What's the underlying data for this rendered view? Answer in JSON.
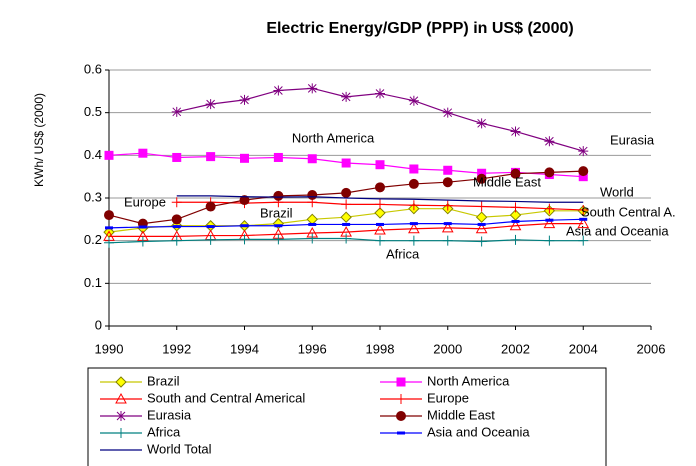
{
  "chart_data": {
    "type": "line",
    "title": "Electric Energy/GDP (PPP) in US$ (2000)",
    "y_label": "KWh/ US$ (2000)",
    "x": [
      1990,
      1991,
      1992,
      1993,
      1994,
      1995,
      1996,
      1997,
      1998,
      1999,
      2000,
      2001,
      2002,
      2003,
      2004
    ],
    "xlim": [
      1990,
      2006
    ],
    "xticks": [
      1990,
      1992,
      1994,
      1996,
      1998,
      2000,
      2002,
      2004,
      2006
    ],
    "ylim": [
      0,
      0.6
    ],
    "yticks": [
      0,
      0.1,
      0.2,
      0.3,
      0.4,
      0.5,
      0.6
    ],
    "grid": true,
    "series": [
      {
        "name": "Brazil",
        "color": "#c8c800",
        "marker": "diamond",
        "values": [
          0.22,
          0.23,
          0.235,
          0.235,
          0.235,
          0.24,
          0.25,
          0.255,
          0.265,
          0.275,
          0.275,
          0.255,
          0.26,
          0.27,
          0.27
        ]
      },
      {
        "name": "North America",
        "color": "#ff00ff",
        "marker": "square",
        "values": [
          0.4,
          0.405,
          0.395,
          0.397,
          0.393,
          0.395,
          0.392,
          0.382,
          0.378,
          0.368,
          0.365,
          0.358,
          0.36,
          0.355,
          0.35
        ]
      },
      {
        "name": "South and Central Americal",
        "color": "#ff0000",
        "marker": "triangle",
        "values": [
          0.21,
          0.21,
          0.21,
          0.212,
          0.212,
          0.215,
          0.218,
          0.22,
          0.225,
          0.228,
          0.23,
          0.228,
          0.235,
          0.24,
          0.24
        ]
      },
      {
        "name": "Europe",
        "color": "#ff0000",
        "marker": "plus",
        "values": [
          null,
          null,
          0.29,
          0.29,
          0.288,
          0.29,
          0.29,
          0.285,
          0.285,
          0.283,
          0.282,
          0.28,
          0.278,
          0.275,
          0.272
        ]
      },
      {
        "name": "Eurasia",
        "color": "#800080",
        "marker": "asterisk",
        "values": [
          null,
          null,
          0.502,
          0.52,
          0.53,
          0.552,
          0.557,
          0.537,
          0.545,
          0.528,
          0.5,
          0.475,
          0.456,
          0.433,
          0.41
        ]
      },
      {
        "name": "Middle East",
        "color": "#800000",
        "marker": "circle",
        "values": [
          0.26,
          0.24,
          0.25,
          0.28,
          0.295,
          0.305,
          0.307,
          0.312,
          0.325,
          0.333,
          0.337,
          0.345,
          0.357,
          0.36,
          0.363
        ]
      },
      {
        "name": "Africa",
        "color": "#008080",
        "marker": "plus",
        "values": [
          0.195,
          0.198,
          0.2,
          0.202,
          0.203,
          0.203,
          0.205,
          0.205,
          0.2,
          0.2,
          0.2,
          0.198,
          0.202,
          0.2,
          0.2
        ]
      },
      {
        "name": "Asia and Oceania",
        "color": "#0000ff",
        "marker": "dash",
        "values": [
          0.23,
          0.232,
          0.233,
          0.233,
          0.235,
          0.235,
          0.238,
          0.238,
          0.238,
          0.24,
          0.24,
          0.238,
          0.245,
          0.248,
          0.25
        ]
      },
      {
        "name": "World Total",
        "color": "#000080",
        "marker": "none",
        "values": [
          null,
          null,
          0.305,
          0.305,
          0.303,
          0.302,
          0.303,
          0.3,
          0.298,
          0.297,
          0.295,
          0.293,
          0.292,
          0.29,
          0.29
        ]
      }
    ],
    "annotations": [
      "North America",
      "Eurasia",
      "Middle East",
      "Europe",
      "World",
      "Brazil",
      "South Central A.",
      "Asia and Oceania",
      "Africa"
    ]
  }
}
